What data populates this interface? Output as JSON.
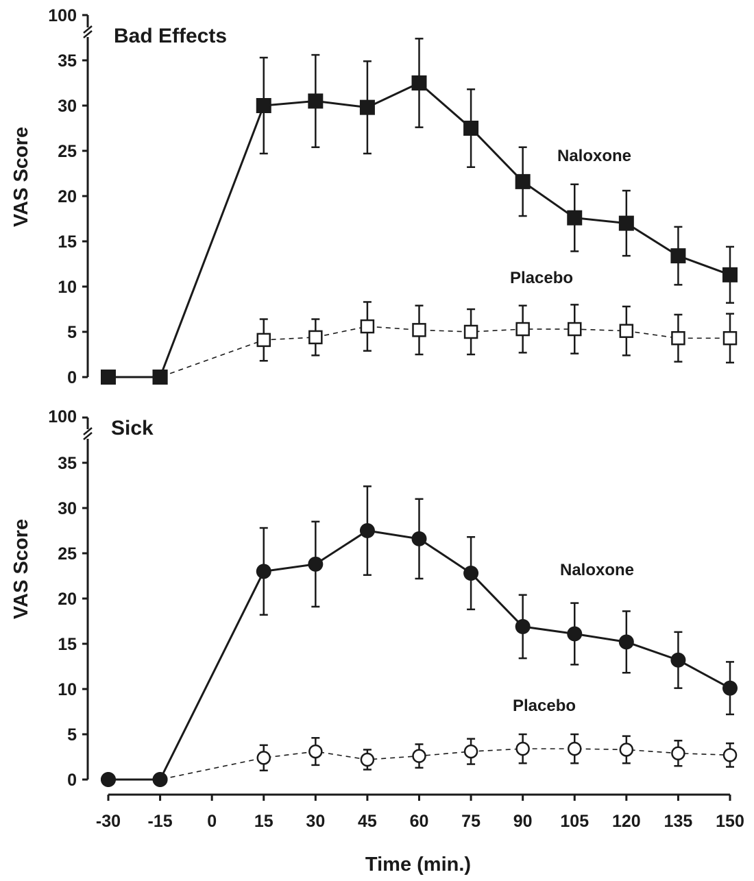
{
  "chart_data": [
    {
      "type": "line",
      "title": "Bad Effects",
      "ylabel": "VAS Score",
      "xlabel": "",
      "ylim": [
        0,
        35
      ],
      "yticks": [
        0,
        5,
        10,
        15,
        20,
        25,
        30,
        35
      ],
      "y_break_label": "100",
      "x": [
        -30,
        -15,
        15,
        30,
        45,
        60,
        75,
        90,
        105,
        120,
        135,
        150
      ],
      "series": [
        {
          "name": "Naloxone",
          "marker": "filled-square",
          "line": "solid",
          "values": [
            0,
            0,
            30.0,
            30.5,
            29.8,
            32.5,
            27.5,
            21.6,
            17.6,
            17.0,
            13.4,
            11.3
          ],
          "error": [
            0,
            0,
            5.3,
            5.1,
            5.1,
            4.9,
            4.3,
            3.8,
            3.7,
            3.6,
            3.2,
            3.1
          ]
        },
        {
          "name": "Placebo",
          "marker": "open-square",
          "line": "dashed",
          "values": [
            0,
            0,
            4.1,
            4.4,
            5.6,
            5.2,
            5.0,
            5.3,
            5.3,
            5.1,
            4.3,
            4.3
          ],
          "error": [
            0,
            0,
            2.3,
            2.0,
            2.7,
            2.7,
            2.5,
            2.6,
            2.7,
            2.7,
            2.6,
            2.7
          ]
        }
      ]
    },
    {
      "type": "line",
      "title": "Sick",
      "ylabel": "VAS Score",
      "xlabel": "Time (min.)",
      "ylim": [
        0,
        35
      ],
      "yticks": [
        0,
        5,
        10,
        15,
        20,
        25,
        30,
        35
      ],
      "y_break_label": "100",
      "x": [
        -30,
        -15,
        15,
        30,
        45,
        60,
        75,
        90,
        105,
        120,
        135,
        150
      ],
      "xticks": [
        "-30",
        "-15",
        "0",
        "15",
        "30",
        "45",
        "60",
        "75",
        "90",
        "105",
        "120",
        "135",
        "150"
      ],
      "series": [
        {
          "name": "Naloxone",
          "marker": "filled-circle",
          "line": "solid",
          "values": [
            0,
            0,
            23.0,
            23.8,
            27.5,
            26.6,
            22.8,
            16.9,
            16.1,
            15.2,
            13.2,
            10.1
          ],
          "error": [
            0,
            0,
            4.8,
            4.7,
            4.9,
            4.4,
            4.0,
            3.5,
            3.4,
            3.4,
            3.1,
            2.9
          ]
        },
        {
          "name": "Placebo",
          "marker": "open-circle",
          "line": "dashed",
          "values": [
            0,
            0,
            2.4,
            3.1,
            2.2,
            2.6,
            3.1,
            3.4,
            3.4,
            3.3,
            2.9,
            2.7
          ],
          "error": [
            0,
            0,
            1.4,
            1.5,
            1.1,
            1.3,
            1.4,
            1.6,
            1.6,
            1.5,
            1.4,
            1.3
          ]
        }
      ]
    }
  ]
}
